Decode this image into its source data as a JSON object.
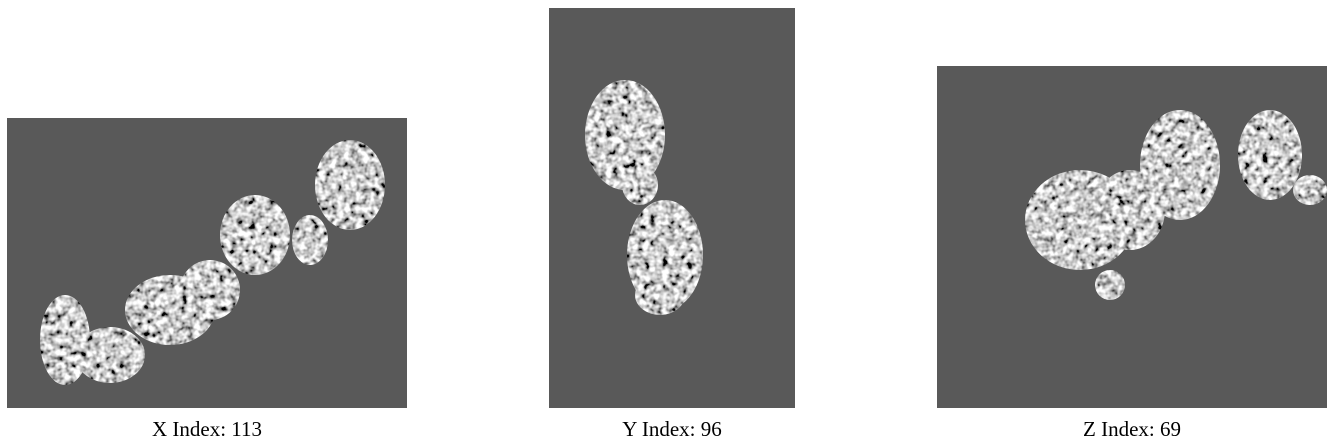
{
  "panels": [
    {
      "caption": "X Index: 113"
    },
    {
      "caption": "Y Index: 96"
    },
    {
      "caption": "Z Index: 69"
    }
  ]
}
